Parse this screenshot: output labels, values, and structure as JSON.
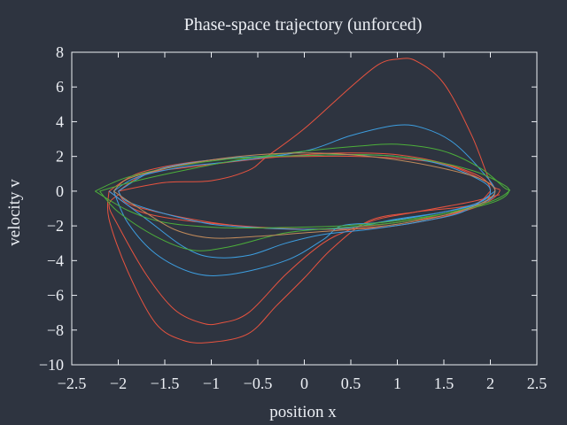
{
  "chart_data": {
    "type": "line",
    "title": "Phase-space trajectory (unforced)",
    "xlabel": "position x",
    "ylabel": "velocity v",
    "xlim": [
      -2.5,
      2.5
    ],
    "ylim": [
      -10,
      8
    ],
    "xticks": [
      -2.5,
      -2,
      -1.5,
      -1,
      -0.5,
      0,
      0.5,
      1,
      1.5,
      2,
      2.5
    ],
    "yticks": [
      -10,
      -8,
      -6,
      -4,
      -2,
      0,
      2,
      4,
      6,
      8
    ],
    "xtick_labels": [
      "−2.5",
      "−2",
      "−1.5",
      "−1",
      "−0.5",
      "0",
      "0.5",
      "1",
      "1.5",
      "2",
      "2.5"
    ],
    "ytick_labels": [
      "−10",
      "−8",
      "−6",
      "−4",
      "−2",
      "0",
      "2",
      "4",
      "6",
      "8"
    ],
    "grid": false,
    "legend": "none",
    "colors": {
      "background": "#2e3440",
      "axes": "#eceff4",
      "series_1": "#e8533f",
      "series_2": "#3d9ee0",
      "series_3": "#4caf3a",
      "series_4": "#c08a5a"
    },
    "series": [
      {
        "color": "#e8533f",
        "points": [
          [
            -2.0,
            0.0
          ],
          [
            -1.7,
            1.0
          ],
          [
            -1.2,
            1.4
          ],
          [
            -0.6,
            1.8
          ],
          [
            0.0,
            2.1
          ],
          [
            0.5,
            2.2
          ],
          [
            1.0,
            2.1
          ],
          [
            1.5,
            1.6
          ],
          [
            1.9,
            0.8
          ],
          [
            2.0,
            0.0
          ],
          [
            1.9,
            -0.8
          ],
          [
            1.5,
            -1.4
          ],
          [
            1.0,
            -1.8
          ],
          [
            0.5,
            -2.1
          ],
          [
            0.0,
            -2.2
          ],
          [
            -0.5,
            -2.1
          ],
          [
            -1.0,
            -1.8
          ],
          [
            -1.5,
            -1.3
          ],
          [
            -1.9,
            -0.7
          ],
          [
            -2.0,
            0.0
          ]
        ]
      },
      {
        "color": "#e8533f",
        "points": [
          [
            -2.0,
            0.0
          ],
          [
            -1.5,
            0.5
          ],
          [
            -1.0,
            0.6
          ],
          [
            -0.6,
            1.2
          ],
          [
            -0.4,
            2.0
          ],
          [
            0.0,
            3.6
          ],
          [
            0.5,
            6.0
          ],
          [
            0.8,
            7.3
          ],
          [
            1.0,
            7.6
          ],
          [
            1.2,
            7.5
          ],
          [
            1.5,
            6.2
          ],
          [
            1.8,
            3.2
          ],
          [
            2.0,
            0.5
          ],
          [
            2.1,
            0.0
          ],
          [
            1.9,
            -0.8
          ],
          [
            1.4,
            -1.6
          ],
          [
            0.8,
            -2.1
          ],
          [
            0.2,
            -2.2
          ],
          [
            -0.4,
            -2.1
          ],
          [
            -0.9,
            -1.9
          ],
          [
            -1.4,
            -1.6
          ],
          [
            -1.8,
            -1.1
          ],
          [
            -2.1,
            0.0
          ]
        ]
      },
      {
        "color": "#e8533f",
        "points": [
          [
            2.1,
            -0.2
          ],
          [
            1.8,
            -0.6
          ],
          [
            1.2,
            -1.2
          ],
          [
            0.8,
            -1.6
          ],
          [
            0.5,
            -2.2
          ],
          [
            0.2,
            -3.0
          ],
          [
            -0.2,
            -4.8
          ],
          [
            -0.6,
            -7.0
          ],
          [
            -0.9,
            -7.6
          ],
          [
            -1.1,
            -7.6
          ],
          [
            -1.4,
            -6.8
          ],
          [
            -1.7,
            -4.8
          ],
          [
            -2.0,
            -2.0
          ],
          [
            -2.1,
            -0.8
          ],
          [
            -2.0,
            -0.2
          ]
        ]
      },
      {
        "color": "#e8533f",
        "points": [
          [
            2.0,
            0.0
          ],
          [
            1.8,
            -0.8
          ],
          [
            1.2,
            -1.2
          ],
          [
            0.7,
            -1.7
          ],
          [
            0.3,
            -3.3
          ],
          [
            0.0,
            -5.0
          ],
          [
            -0.3,
            -6.6
          ],
          [
            -0.6,
            -8.2
          ],
          [
            -1.0,
            -8.7
          ],
          [
            -1.3,
            -8.6
          ],
          [
            -1.6,
            -7.6
          ],
          [
            -1.9,
            -4.6
          ],
          [
            -2.1,
            -1.6
          ],
          [
            -2.1,
            0.0
          ]
        ]
      },
      {
        "color": "#e8533f",
        "points": [
          [
            -2.1,
            0.0
          ],
          [
            -1.8,
            1.0
          ],
          [
            -1.3,
            1.6
          ],
          [
            -0.7,
            1.9
          ],
          [
            0.0,
            2.0
          ],
          [
            0.6,
            2.0
          ],
          [
            1.2,
            1.8
          ],
          [
            1.6,
            1.4
          ],
          [
            2.0,
            0.4
          ],
          [
            2.05,
            0.0
          ]
        ]
      },
      {
        "color": "#3d9ee0",
        "points": [
          [
            -2.05,
            0.0
          ],
          [
            -1.8,
            0.8
          ],
          [
            -1.3,
            1.4
          ],
          [
            -0.8,
            1.7
          ],
          [
            0.0,
            2.3
          ],
          [
            0.5,
            3.2
          ],
          [
            1.0,
            3.8
          ],
          [
            1.3,
            3.6
          ],
          [
            1.6,
            2.8
          ],
          [
            1.9,
            1.2
          ],
          [
            2.05,
            0.0
          ],
          [
            1.9,
            -0.7
          ],
          [
            1.4,
            -1.3
          ],
          [
            0.8,
            -1.8
          ],
          [
            0.4,
            -2.0
          ],
          [
            0.2,
            -2.8
          ],
          [
            -0.2,
            -4.0
          ],
          [
            -0.8,
            -4.8
          ],
          [
            -1.2,
            -4.7
          ],
          [
            -1.6,
            -3.6
          ],
          [
            -1.9,
            -1.8
          ],
          [
            -2.05,
            0.0
          ]
        ]
      },
      {
        "color": "#3d9ee0",
        "points": [
          [
            -2.1,
            0.0
          ],
          [
            -1.7,
            -1.6
          ],
          [
            -1.3,
            -3.2
          ],
          [
            -1.0,
            -3.8
          ],
          [
            -0.6,
            -3.7
          ],
          [
            -0.2,
            -3.0
          ],
          [
            0.2,
            -2.5
          ],
          [
            0.7,
            -2.2
          ],
          [
            1.2,
            -1.8
          ],
          [
            1.7,
            -1.2
          ],
          [
            2.05,
            0.0
          ]
        ]
      },
      {
        "color": "#3d9ee0",
        "points": [
          [
            -2.0,
            0.0
          ],
          [
            -1.6,
            1.2
          ],
          [
            -1.0,
            1.8
          ],
          [
            -0.5,
            2.0
          ],
          [
            0.0,
            2.05
          ],
          [
            0.5,
            2.1
          ],
          [
            1.0,
            2.0
          ],
          [
            1.5,
            1.5
          ],
          [
            1.9,
            0.6
          ],
          [
            2.0,
            0.0
          ],
          [
            1.9,
            -0.6
          ],
          [
            1.5,
            -1.2
          ],
          [
            1.0,
            -1.6
          ],
          [
            0.5,
            -2.1
          ],
          [
            0.0,
            -2.2
          ],
          [
            -0.5,
            -2.1
          ],
          [
            -1.0,
            -1.9
          ],
          [
            -1.5,
            -1.3
          ],
          [
            -1.9,
            -0.6
          ],
          [
            -2.0,
            0.0
          ]
        ]
      },
      {
        "color": "#4caf3a",
        "points": [
          [
            -2.2,
            0.0
          ],
          [
            -1.8,
            0.6
          ],
          [
            -1.2,
            1.3
          ],
          [
            -0.6,
            1.9
          ],
          [
            0.0,
            2.3
          ],
          [
            0.6,
            2.6
          ],
          [
            1.0,
            2.7
          ],
          [
            1.5,
            2.3
          ],
          [
            1.9,
            1.3
          ],
          [
            2.15,
            0.2
          ],
          [
            2.2,
            0.0
          ],
          [
            2.0,
            -0.6
          ],
          [
            1.5,
            -1.3
          ],
          [
            1.0,
            -1.8
          ],
          [
            0.4,
            -2.1
          ],
          [
            -0.2,
            -2.4
          ],
          [
            -0.8,
            -3.2
          ],
          [
            -1.2,
            -3.4
          ],
          [
            -1.6,
            -2.6
          ],
          [
            -2.0,
            -1.2
          ],
          [
            -2.2,
            0.0
          ]
        ]
      },
      {
        "color": "#4caf3a",
        "points": [
          [
            -2.25,
            0.0
          ],
          [
            -1.9,
            0.8
          ],
          [
            -1.3,
            1.5
          ],
          [
            -0.7,
            1.9
          ],
          [
            0.0,
            2.05
          ],
          [
            0.7,
            2.1
          ],
          [
            1.3,
            1.8
          ],
          [
            1.8,
            1.2
          ],
          [
            2.1,
            0.5
          ],
          [
            2.2,
            0.0
          ],
          [
            2.05,
            -0.6
          ],
          [
            1.6,
            -1.2
          ],
          [
            1.0,
            -1.7
          ],
          [
            0.4,
            -2.0
          ],
          [
            -0.3,
            -2.1
          ],
          [
            -0.9,
            -2.1
          ],
          [
            -1.5,
            -1.8
          ],
          [
            -1.9,
            -1.1
          ],
          [
            -2.25,
            0.0
          ]
        ]
      },
      {
        "color": "#c08a5a",
        "points": [
          [
            -2.05,
            0.0
          ],
          [
            -1.8,
            -0.9
          ],
          [
            -1.4,
            -2.2
          ],
          [
            -1.0,
            -2.7
          ],
          [
            -0.5,
            -2.6
          ],
          [
            0.0,
            -2.4
          ],
          [
            0.5,
            -2.2
          ],
          [
            1.0,
            -1.9
          ],
          [
            1.5,
            -1.4
          ],
          [
            1.9,
            -0.7
          ],
          [
            2.05,
            0.0
          ],
          [
            1.9,
            0.7
          ],
          [
            1.5,
            1.3
          ],
          [
            1.0,
            1.8
          ],
          [
            0.5,
            2.1
          ],
          [
            0.0,
            2.2
          ],
          [
            -0.5,
            2.1
          ],
          [
            -1.0,
            1.8
          ],
          [
            -1.5,
            1.3
          ],
          [
            -1.9,
            0.7
          ],
          [
            -2.05,
            0.0
          ]
        ]
      }
    ]
  }
}
